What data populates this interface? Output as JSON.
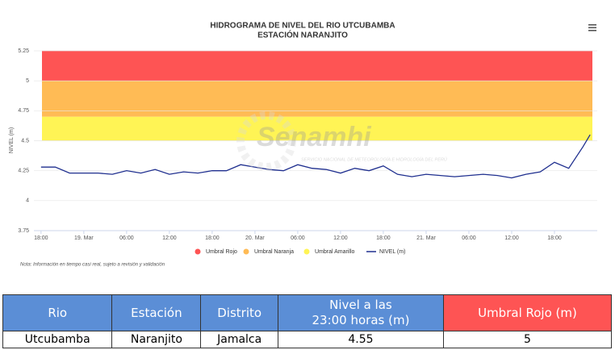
{
  "chart_data": {
    "type": "line",
    "title": "HIDROGRAMA DE NIVEL DEL RIO UTCUBAMBA",
    "subtitle": "ESTACIÓN NARANJITO",
    "y_label": "NIVEL (m)",
    "note": "Nota: Información en tiempo casi real, sujeto a revisión y validación",
    "watermark": {
      "name": "Senamhi",
      "text": "SERVICIO NACIONAL DE METEOROLOGÍA E HIDROLOGÍA DEL PERÚ"
    },
    "ylim": [
      3.75,
      5.25
    ],
    "yticks": [
      3.75,
      4,
      4.25,
      4.5,
      4.75,
      5,
      5.25
    ],
    "grid": true,
    "xlim": [
      -1,
      78
    ],
    "xticks": [
      {
        "value": 0,
        "label": "18:00"
      },
      {
        "value": 6,
        "label": "19. Mar"
      },
      {
        "value": 12,
        "label": "06:00"
      },
      {
        "value": 18,
        "label": "12:00"
      },
      {
        "value": 24,
        "label": "18:00"
      },
      {
        "value": 30,
        "label": "20. Mar"
      },
      {
        "value": 36,
        "label": "06:00"
      },
      {
        "value": 42,
        "label": "12:00"
      },
      {
        "value": 48,
        "label": "18:00"
      },
      {
        "value": 54,
        "label": "21. Mar"
      },
      {
        "value": 60,
        "label": "06:00"
      },
      {
        "value": 66,
        "label": "12:00"
      },
      {
        "value": 72,
        "label": "18:00"
      }
    ],
    "bands": [
      {
        "name": "Umbral Rojo",
        "color": "#fe5454",
        "from": 5,
        "to": 5.25
      },
      {
        "name": "Umbral Naranja",
        "color": "#ffbb55",
        "from": 4.7,
        "to": 5
      },
      {
        "name": "Umbral Amarillo",
        "color": "#fff455",
        "from": 4.5,
        "to": 4.7
      }
    ],
    "x": [
      0,
      2,
      4,
      6,
      8,
      10,
      12,
      14,
      16,
      18,
      20,
      22,
      24,
      26,
      28,
      30,
      32,
      34,
      36,
      38,
      40,
      42,
      44,
      46,
      48,
      50,
      52,
      54,
      56,
      58,
      60,
      62,
      64,
      66,
      68,
      70,
      72,
      74,
      76,
      77
    ],
    "series": [
      {
        "name": "NIVEL (m)",
        "color": "#1f2f8f",
        "values": [
          4.28,
          4.28,
          4.23,
          4.23,
          4.23,
          4.22,
          4.25,
          4.23,
          4.26,
          4.22,
          4.24,
          4.23,
          4.25,
          4.25,
          4.3,
          4.28,
          4.26,
          4.25,
          4.3,
          4.27,
          4.26,
          4.23,
          4.27,
          4.25,
          4.29,
          4.22,
          4.2,
          4.22,
          4.21,
          4.2,
          4.21,
          4.22,
          4.21,
          4.19,
          4.22,
          4.24,
          4.32,
          4.27,
          4.45,
          4.55
        ]
      }
    ]
  },
  "table": {
    "header": [
      "Rio",
      "Estación",
      "Distrito",
      "Nivel a las\n23:00 horas (m)",
      "Umbral Rojo (m)"
    ],
    "rows": [
      [
        "Utcubamba",
        "Naranjito",
        "Jamalca",
        "4.55",
        "5"
      ]
    ]
  }
}
